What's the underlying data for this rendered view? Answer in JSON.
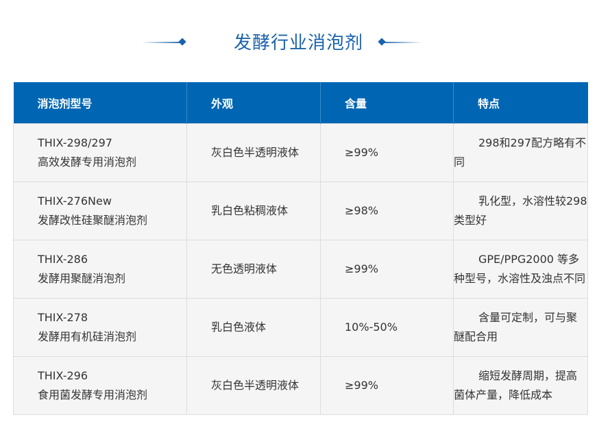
{
  "title": "发酵行业消泡剂",
  "colors": {
    "accent": "#0066b3",
    "row_bg": "#f5f5f5"
  },
  "table": {
    "headers": [
      "消泡剂型号",
      "外观",
      "含量",
      "特点"
    ],
    "rows": [
      {
        "model": "THIX-298/297",
        "desc": "高效发酵专用消泡剂",
        "appearance": "灰白色半透明液体",
        "content": "≥99%",
        "feature": "298和297配方略有不同"
      },
      {
        "model": "THIX-276New",
        "desc": "发酵改性硅聚醚消泡剂",
        "appearance": "乳白色粘稠液体",
        "content": "≥98%",
        "feature": "乳化型，水溶性较298 类型好"
      },
      {
        "model": "THIX-286",
        "desc": "发酵用聚醚消泡剂",
        "appearance": "无色透明液体",
        "content": "≥99%",
        "feature": "GPE/PPG2000 等多种型号，水溶性及浊点不同"
      },
      {
        "model": "THIX-278",
        "desc": "发酵用有机硅消泡剂",
        "appearance": "乳白色液体",
        "content": "10%-50%",
        "feature": "含量可定制，可与聚醚配合用"
      },
      {
        "model": "THIX-296",
        "desc": "食用菌发酵专用消泡剂",
        "appearance": "灰白色半透明液体",
        "content": "≥99%",
        "feature": "缩短发酵周期，提高菌体产量，降低成本"
      }
    ]
  }
}
